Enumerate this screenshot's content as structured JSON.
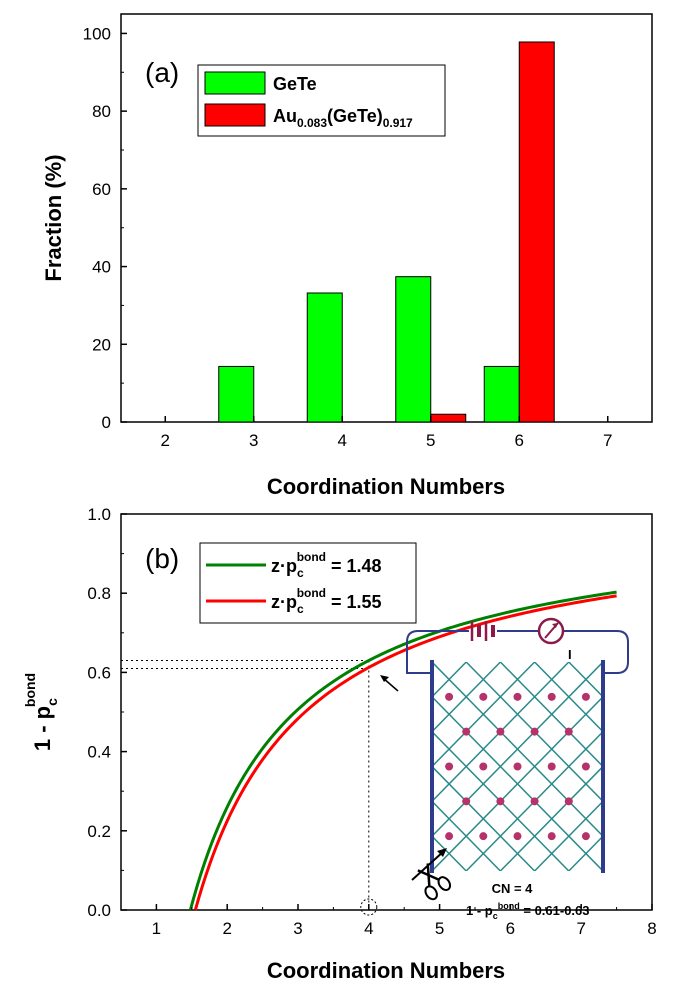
{
  "chart_data": [
    {
      "type": "bar",
      "panel_label": "(a)",
      "xlabel": "Coordination Numbers",
      "ylabel": "Fraction (%)",
      "xlim": [
        1.5,
        7.5
      ],
      "ylim": [
        0,
        105
      ],
      "categories": [
        2,
        3,
        4,
        5,
        6,
        7
      ],
      "x_ticks": [
        "2",
        "3",
        "4",
        "5",
        "6",
        "7"
      ],
      "y_ticks": [
        "0",
        "20",
        "40",
        "60",
        "80",
        "100"
      ],
      "y_tick_values": [
        0,
        20,
        40,
        60,
        80,
        100
      ],
      "legend_position": "top-left",
      "series": [
        {
          "name": "GeTe",
          "legend_main": "GeTe",
          "color": "#00ff00",
          "values": [
            0,
            14.3,
            33.2,
            37.4,
            14.3,
            0
          ]
        },
        {
          "name": "Au0.083(GeTe)0.917",
          "legend_main": "Au",
          "legend_sub1": "0.083",
          "legend_mid": "(GeTe)",
          "legend_sub2": "0.917",
          "color": "#ff0000",
          "values": [
            0,
            0,
            0,
            2.0,
            97.8,
            0
          ]
        }
      ]
    },
    {
      "type": "line",
      "panel_label": "(b)",
      "xlabel": "Coordination Numbers",
      "ylabel_main": "1 - p",
      "ylabel_sub": "c",
      "ylabel_sup": "bond",
      "xlim": [
        0.5,
        8
      ],
      "ylim": [
        0,
        1.0
      ],
      "x_ticks": [
        "1",
        "2",
        "3",
        "4",
        "5",
        "6",
        "7",
        "8"
      ],
      "x_tick_values": [
        1,
        2,
        3,
        4,
        5,
        6,
        7,
        8
      ],
      "y_ticks": [
        "0.0",
        "0.2",
        "0.4",
        "0.6",
        "0.8",
        "1.0"
      ],
      "y_tick_values": [
        0,
        0.2,
        0.4,
        0.6,
        0.8,
        1.0
      ],
      "legend_position": "top-left",
      "series": [
        {
          "name": "z·pc^bond = 1.48",
          "label_pre": "z·p",
          "label_sub": "c",
          "label_sup": "bond",
          "label_post": " = 1.48",
          "color": "#008000",
          "z_pc": 1.48,
          "x_range": [
            1.48,
            7.5
          ],
          "formula": "1 - z_pc/z"
        },
        {
          "name": "z·pc^bond = 1.55",
          "label_pre": "z·p",
          "label_sub": "c",
          "label_sup": "bond",
          "label_post": " = 1.55",
          "color": "#ff0000",
          "z_pc": 1.55,
          "x_range": [
            1.55,
            7.5
          ],
          "formula": "1 - z_pc/z"
        }
      ],
      "reference": {
        "x": 4,
        "y_low": 0.61,
        "y_high": 0.63
      },
      "inset": {
        "cn_label": "CN = 4",
        "range_pre": "1 - p",
        "range_sub": "c",
        "range_sup": "bond",
        "range_post": " = 0.61-0.63",
        "current_label": "I"
      }
    }
  ]
}
